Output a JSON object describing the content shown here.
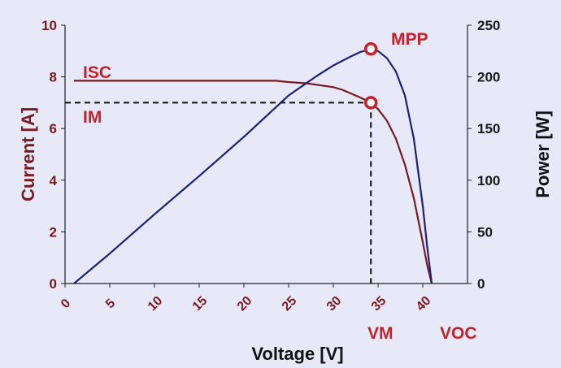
{
  "chart_data": {
    "type": "line",
    "xlabel": "Voltage [V]",
    "ylabel_left": "Current [A]",
    "ylabel_right": "Power [W]",
    "xlim": [
      0,
      45
    ],
    "ylim_left": [
      0,
      10
    ],
    "ylim_right": [
      0,
      250
    ],
    "x_ticks": [
      0,
      5,
      10,
      15,
      20,
      25,
      30,
      35,
      40
    ],
    "y_ticks_left": [
      0,
      2,
      4,
      6,
      8,
      10
    ],
    "y_ticks_right": [
      0,
      50,
      100,
      150,
      200,
      250
    ],
    "grid": false,
    "series": [
      {
        "axis": "left",
        "color": "#7a1a1f",
        "x": [
          1.0,
          5,
          10,
          15,
          20,
          23.5,
          25,
          27,
          29,
          30,
          31,
          32,
          33,
          34.2,
          35,
          36,
          37,
          38,
          39,
          40,
          40.5,
          41.0
        ],
        "y": [
          7.85,
          7.85,
          7.85,
          7.85,
          7.85,
          7.85,
          7.8,
          7.75,
          7.65,
          7.6,
          7.5,
          7.35,
          7.2,
          7.0,
          6.75,
          6.3,
          5.6,
          4.6,
          3.3,
          1.6,
          0.7,
          0.0
        ]
      },
      {
        "axis": "right",
        "color": "#1c1f7a",
        "x": [
          1.0,
          5,
          10,
          15,
          20,
          25,
          28,
          30,
          32,
          33,
          34.2,
          35,
          36,
          37,
          38,
          39,
          40,
          40.5,
          41.0
        ],
        "y": [
          0,
          29,
          67,
          104,
          142,
          182,
          200,
          211,
          220,
          224,
          227,
          225,
          218,
          205,
          182,
          140,
          75,
          35,
          0
        ]
      }
    ],
    "annotations": {
      "isc": "ISC",
      "im": "IM",
      "mpp": "MPP",
      "vm": "VM",
      "voc": "VOC"
    },
    "isc_value": 7.85,
    "im_value": 7.0,
    "vm_value": 34.2,
    "voc_value": 41.0,
    "pmax_value": 227,
    "accent_color": "#c8202a",
    "dashed_color": "#111111"
  }
}
